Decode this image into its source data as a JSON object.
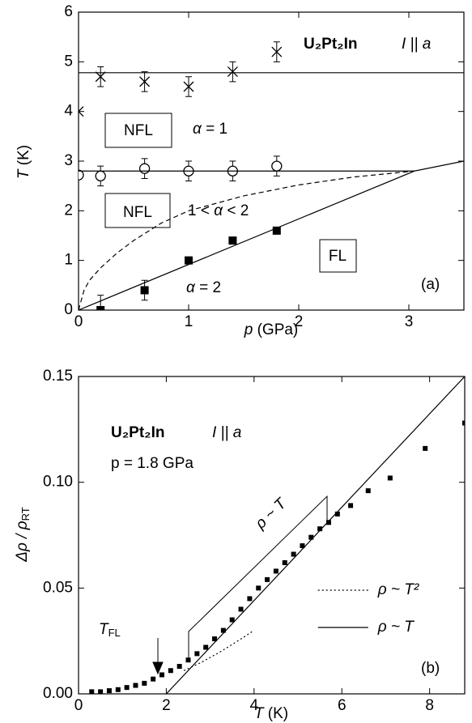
{
  "chart_data": [
    {
      "type": "scatter",
      "label": "(a)",
      "compound": "U₂Pt₂In",
      "direction": "I || a",
      "xlabel": [
        "p",
        " (GPa)"
      ],
      "ylabel": [
        "T",
        " (K)"
      ],
      "regions": [
        {
          "box": "NFL",
          "alpha": [
            "α",
            " = 1"
          ]
        },
        {
          "box": "NFL",
          "alpha": [
            "1 < ",
            "α",
            " < 2"
          ]
        },
        {
          "box": "FL",
          "alpha": [
            "α",
            " = 2"
          ]
        }
      ],
      "xlim": [
        0,
        3.5
      ],
      "ylim": [
        0,
        6
      ],
      "xticks": [
        0,
        1,
        2,
        3
      ],
      "yticks": [
        0,
        1,
        2,
        3,
        4,
        5,
        6
      ],
      "series": [
        {
          "marker": "cross",
          "color": "#000000",
          "x": [
            0,
            0.2,
            0.6,
            1.0,
            1.4,
            1.8
          ],
          "values": [
            4,
            4.7,
            4.6,
            4.5,
            4.8,
            5.2
          ],
          "errors": [
            null,
            0.2,
            0.2,
            0.2,
            0.2,
            0.2
          ]
        },
        {
          "marker": "circle",
          "color": "#000000",
          "x": [
            0,
            0.2,
            0.6,
            1.0,
            1.4,
            1.8
          ],
          "values": [
            2.72,
            2.7,
            2.85,
            2.8,
            2.8,
            2.9
          ],
          "errors": [
            null,
            0.2,
            0.2,
            0.2,
            0.2,
            0.2
          ]
        },
        {
          "marker": "square",
          "color": "#000000",
          "x": [
            0.2,
            0.6,
            1.0,
            1.4,
            1.8
          ],
          "values": [
            0,
            0.4,
            1.0,
            1.4,
            1.6
          ],
          "errors": [
            0.3,
            0.2,
            0.07,
            0.07,
            0.07
          ]
        },
        {
          "marker": "line",
          "dash": "solid",
          "color": "#000000",
          "x": [
            0,
            3.5
          ],
          "values": [
            4.78,
            4.78
          ]
        },
        {
          "marker": "line",
          "dash": "solid",
          "color": "#000000",
          "x": [
            0,
            3.05,
            3.5
          ],
          "values": [
            2.8,
            2.8,
            3.0
          ]
        },
        {
          "marker": "line",
          "dash": "solid",
          "color": "#000000",
          "x": [
            0,
            3.05
          ],
          "values": [
            0,
            2.8
          ]
        },
        {
          "marker": "line",
          "dash": "dashed",
          "color": "#000000",
          "x": [
            0,
            0.05,
            0.1,
            0.2,
            0.35,
            0.5,
            0.75,
            1,
            1.5,
            2,
            2.5,
            3.05
          ],
          "values": [
            0,
            0.4,
            0.6,
            0.85,
            1.15,
            1.4,
            1.75,
            2.0,
            2.3,
            2.52,
            2.68,
            2.8
          ]
        }
      ]
    },
    {
      "type": "scatter",
      "label": "(b)",
      "compound": "U₂Pt₂In",
      "direction": "I || a",
      "pressure": "p = 1.8 GPa",
      "slope_label": "ρ ~ T",
      "crossover": {
        "text": "T",
        "subscript": "FL"
      },
      "xlabel": [
        "T",
        " (K)"
      ],
      "ylabel": {
        "text": "Δρ / ρ",
        "subscript": "RT"
      },
      "xlim": [
        0,
        8.8
      ],
      "ylim": [
        0,
        0.15
      ],
      "xticks": [
        0,
        2,
        4,
        6,
        8
      ],
      "yticks": [
        {
          "value": 0,
          "label": "0.00"
        },
        {
          "value": 0.05,
          "label": "0.05"
        },
        {
          "value": 0.1,
          "label": "0.10"
        },
        {
          "value": 0.15,
          "label": "0.15"
        }
      ],
      "legend": "right",
      "series": [
        {
          "marker": "square",
          "color": "#000000",
          "x": [
            0.3,
            0.5,
            0.7,
            0.9,
            1.1,
            1.3,
            1.5,
            1.7,
            1.9,
            2.1,
            2.3,
            2.5,
            2.7,
            2.9,
            3.1,
            3.3,
            3.5,
            3.7,
            3.9,
            4.1,
            4.3,
            4.5,
            4.7,
            4.9,
            5.1,
            5.3,
            5.5,
            5.7,
            5.9,
            6.2,
            6.6,
            7.1,
            7.9,
            8.8
          ],
          "values": [
            0.001,
            0.001,
            0.0015,
            0.002,
            0.003,
            0.004,
            0.005,
            0.007,
            0.009,
            0.011,
            0.013,
            0.016,
            0.019,
            0.022,
            0.026,
            0.03,
            0.035,
            0.04,
            0.045,
            0.05,
            0.054,
            0.058,
            0.062,
            0.066,
            0.07,
            0.074,
            0.078,
            0.081,
            0.085,
            0.089,
            0.096,
            0.102,
            0.116,
            0.128
          ]
        },
        {
          "name": "ρ ~ T²",
          "marker": "line",
          "dash": "dotted",
          "color": "#000000",
          "x": [
            2.4,
            2.8,
            3.2,
            3.6,
            4.0
          ],
          "values": [
            0.011,
            0.0149,
            0.0195,
            0.0246,
            0.03
          ]
        },
        {
          "name": "ρ ~ T",
          "marker": "line",
          "dash": "solid",
          "color": "#000000",
          "x": [
            2.0,
            8.8
          ],
          "values": [
            0,
            0.15
          ]
        }
      ]
    }
  ]
}
